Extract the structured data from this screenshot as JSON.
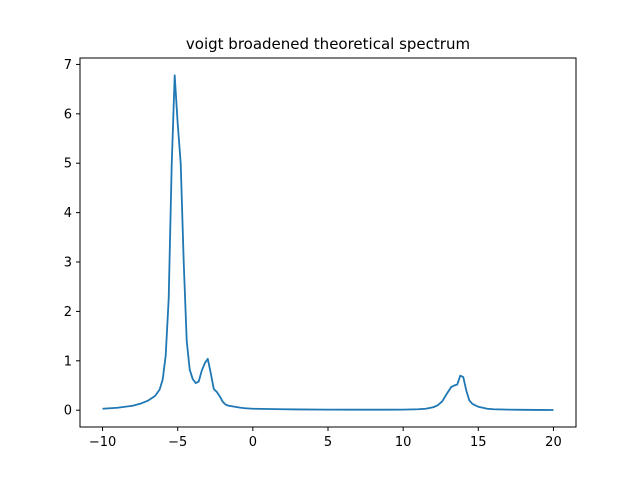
{
  "chart_data": {
    "type": "line",
    "title": "voigt broadened theoretical spectrum",
    "xlabel": "",
    "ylabel": "",
    "xlim": [
      -11.5,
      21.5
    ],
    "ylim": [
      -0.34,
      7.13
    ],
    "x_ticks": [
      -10,
      -5,
      0,
      5,
      10,
      15,
      20
    ],
    "y_ticks": [
      0,
      1,
      2,
      3,
      4,
      5,
      6,
      7
    ],
    "grid": false,
    "legend": "none",
    "series_color": "#1f77b4",
    "series": [
      {
        "x": [
          -10,
          -9,
          -8,
          -7.5,
          -7,
          -6.5,
          -6.2,
          -6,
          -5.8,
          -5.6,
          -5.4,
          -5.2,
          -5.0,
          -4.8,
          -4.6,
          -4.4,
          -4.2,
          -4.0,
          -3.8,
          -3.6,
          -3.4,
          -3.2,
          -3.0,
          -2.8,
          -2.6,
          -2.4,
          -2.2,
          -2.0,
          -1.8,
          -1.6,
          -1.4,
          -1.2,
          -1.0,
          -0.8,
          -0.5,
          0,
          1,
          2,
          3,
          5,
          7,
          9,
          10,
          11,
          11.5,
          12,
          12.3,
          12.6,
          12.9,
          13.2,
          13.4,
          13.6,
          13.8,
          14.0,
          14.2,
          14.4,
          14.6,
          14.8,
          15.0,
          15.3,
          15.6,
          16,
          17,
          18,
          19,
          20
        ],
        "y": [
          0.03,
          0.05,
          0.09,
          0.13,
          0.19,
          0.29,
          0.42,
          0.62,
          1.1,
          2.25,
          4.95,
          6.78,
          5.8,
          5.0,
          3.0,
          1.4,
          0.82,
          0.63,
          0.55,
          0.58,
          0.8,
          0.95,
          1.04,
          0.75,
          0.43,
          0.37,
          0.28,
          0.17,
          0.11,
          0.09,
          0.08,
          0.07,
          0.06,
          0.05,
          0.04,
          0.03,
          0.025,
          0.02,
          0.015,
          0.012,
          0.01,
          0.01,
          0.012,
          0.02,
          0.03,
          0.06,
          0.1,
          0.18,
          0.33,
          0.47,
          0.5,
          0.52,
          0.7,
          0.67,
          0.4,
          0.2,
          0.13,
          0.1,
          0.07,
          0.05,
          0.03,
          0.02,
          0.012,
          0.008,
          0.005,
          0.004
        ]
      }
    ]
  }
}
